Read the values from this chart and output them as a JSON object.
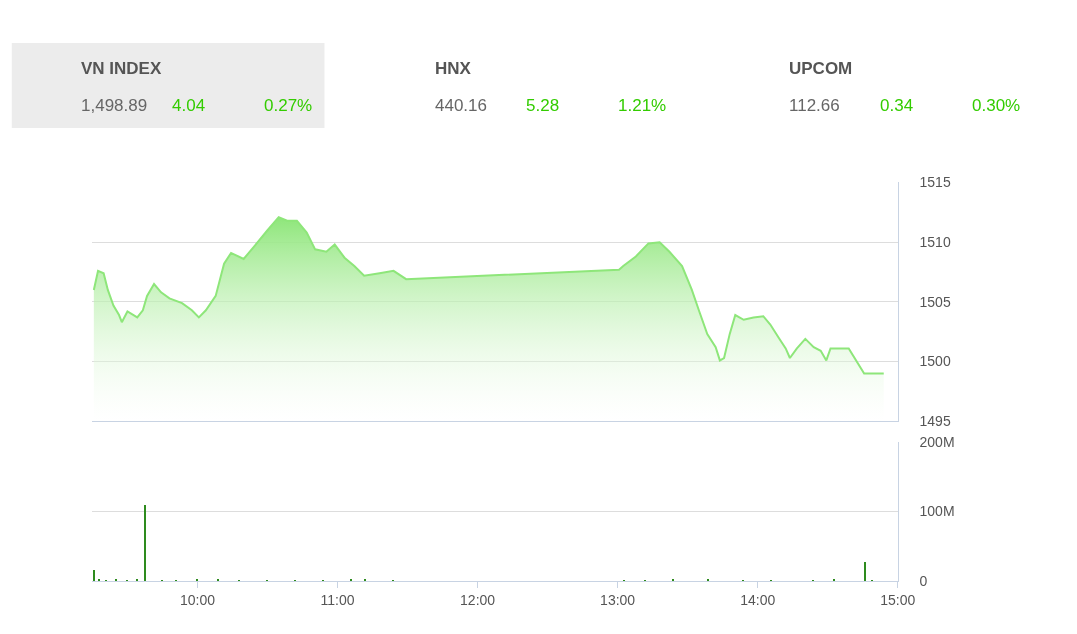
{
  "chart_data": [
    {
      "type": "other",
      "annotations": [
        "VN INDEX",
        "1,498.89",
        "4.04",
        "0.27%",
        "HNX",
        "440.16",
        "5.28",
        "1.21%",
        "UPCOM",
        "112.66",
        "0.34",
        "0.30%"
      ],
      "colors": [
        "#555555",
        "#666666",
        "#33cc00",
        "#33cc00",
        "#555555",
        "#666666",
        "#33cc00",
        "#33cc00",
        "#555555",
        "#666666",
        "#33cc00",
        "#33cc00"
      ]
    },
    {
      "type": "area",
      "color": "#8ee67a",
      "x": [
        9.26,
        9.29,
        9.33,
        9.36,
        9.4,
        9.44,
        9.46,
        9.5,
        9.57,
        9.61,
        9.64,
        9.69,
        9.74,
        9.8,
        9.89,
        9.96,
        10.01,
        10.06,
        10.13,
        10.19,
        10.24,
        10.33,
        10.43,
        10.5,
        10.58,
        10.64,
        10.71,
        10.78,
        10.84,
        10.92,
        10.98,
        11.05,
        11.12,
        11.19,
        11.3,
        11.4,
        11.49,
        13.01,
        13.04,
        13.13,
        13.22,
        13.3,
        13.37,
        13.46,
        13.53,
        13.58,
        13.64,
        13.7,
        13.73,
        13.76,
        13.8,
        13.84,
        13.9,
        13.97,
        14.04,
        14.09,
        14.15,
        14.2,
        14.23,
        14.28,
        14.34,
        14.4,
        14.45,
        14.49,
        14.52,
        14.65,
        14.76,
        14.9
      ],
      "values": [
        1506.0,
        1507.6,
        1507.4,
        1506.0,
        1504.7,
        1503.9,
        1503.3,
        1504.2,
        1503.7,
        1504.3,
        1505.5,
        1506.5,
        1505.8,
        1505.3,
        1504.9,
        1504.3,
        1503.7,
        1504.3,
        1505.5,
        1508.2,
        1509.1,
        1508.6,
        1510.0,
        1511.0,
        1512.1,
        1511.8,
        1511.8,
        1510.8,
        1509.4,
        1509.2,
        1509.8,
        1508.7,
        1508.0,
        1507.2,
        1507.4,
        1507.6,
        1506.9,
        1507.7,
        1508.0,
        1508.8,
        1509.9,
        1510.0,
        1509.2,
        1508.0,
        1506.0,
        1504.3,
        1502.3,
        1501.2,
        1500.1,
        1500.3,
        1502.3,
        1503.9,
        1503.5,
        1503.7,
        1503.8,
        1503.1,
        1502.0,
        1501.1,
        1500.3,
        1501.1,
        1501.9,
        1501.2,
        1500.9,
        1500.1,
        1501.1,
        1501.1,
        1499.0,
        1499.0
      ],
      "xlim": [
        9.25,
        15.0
      ],
      "ylim": [
        1495,
        1515
      ],
      "yticks": [
        1495,
        1500,
        1505,
        1510,
        1515
      ],
      "grid": "y",
      "tick_labels": "y"
    },
    {
      "type": "bar",
      "color": "#2e8b1e",
      "x": [
        9.265,
        9.3,
        9.35,
        9.42,
        9.5,
        9.57,
        9.63,
        9.75,
        9.85,
        10.0,
        10.15,
        10.3,
        10.5,
        10.7,
        10.9,
        11.1,
        11.2,
        11.4,
        13.05,
        13.2,
        13.4,
        13.65,
        13.9,
        14.1,
        14.4,
        14.55,
        14.77,
        14.82
      ],
      "values": [
        17,
        3,
        2,
        3,
        2,
        4,
        110,
        2,
        2,
        3,
        3,
        2,
        2,
        2,
        2,
        4,
        3,
        2,
        2,
        2,
        3,
        4,
        2,
        2,
        2,
        4,
        28,
        2
      ],
      "xlim": [
        9.25,
        15.0
      ],
      "xticks": [
        {
          "value": 10,
          "label": "10:00"
        },
        {
          "value": 11,
          "label": "11:00"
        },
        {
          "value": 12,
          "label": "12:00"
        },
        {
          "value": 13,
          "label": "13:00"
        },
        {
          "value": 14,
          "label": "14:00"
        },
        {
          "value": 15,
          "label": "15:00"
        }
      ],
      "ylim": [
        0,
        200
      ],
      "yticks": [
        0,
        {
          "value": 100,
          "label": "100M"
        },
        {
          "value": 200,
          "label": "200M"
        }
      ],
      "grid": "y"
    }
  ]
}
